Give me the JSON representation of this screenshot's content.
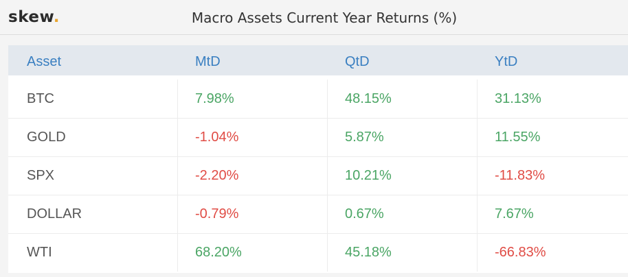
{
  "header": {
    "logo_text": "skew",
    "logo_dot": ".",
    "title": "Macro Assets Current Year Returns (%)"
  },
  "colors": {
    "positive": "#4aa564",
    "negative": "#e04c45",
    "asset": "#555555",
    "header_text": "#3a7fc1",
    "header_bg": "#e3e8ee"
  },
  "chart_data": {
    "type": "table",
    "columns": [
      "Asset",
      "MtD",
      "QtD",
      "YtD"
    ],
    "rows": [
      {
        "asset": "BTC",
        "mtd": "7.98%",
        "qtd": "48.15%",
        "ytd": "31.13%"
      },
      {
        "asset": "GOLD",
        "mtd": "-1.04%",
        "qtd": "5.87%",
        "ytd": "11.55%"
      },
      {
        "asset": "SPX",
        "mtd": "-2.20%",
        "qtd": "10.21%",
        "ytd": "-11.83%"
      },
      {
        "asset": "DOLLAR",
        "mtd": "-0.79%",
        "qtd": "0.67%",
        "ytd": "7.67%"
      },
      {
        "asset": "WTI",
        "mtd": "68.20%",
        "qtd": "45.18%",
        "ytd": "-66.83%"
      }
    ]
  }
}
